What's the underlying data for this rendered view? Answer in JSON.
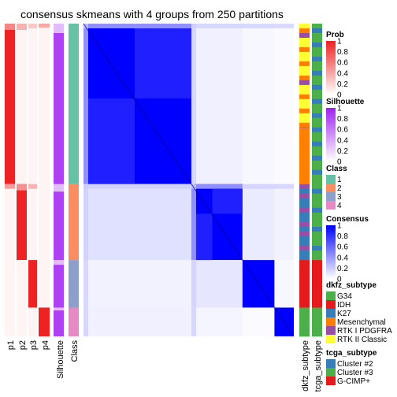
{
  "chart_data": {
    "type": "heatmap",
    "title": "consensus skmeans with 4 groups from 250 partitions",
    "colors": {
      "class": {
        "1": "#66C2A5",
        "2": "#FC8D62",
        "3": "#8DA0CB",
        "4": "#E78AC3"
      },
      "prob_high": "#EE2222",
      "silhouette_high": "#A020F0",
      "consensus_high": "#0000FF",
      "dkfz": {
        "G34": "#4DAF4A",
        "IDH": "#E41A1C",
        "K27": "#377EB8",
        "Mesenchymal": "#FF7F00",
        "RTK I PDGFRA": "#984EA3",
        "RTK II Classic": "#FFFF33"
      },
      "tcga": {
        "Cluster #2": "#377EB8",
        "Cluster #3": "#4DAF4A",
        "G-CIMP+": "#E41A1C"
      }
    },
    "groups": [
      {
        "class": "1",
        "size_fraction": 0.513
      },
      {
        "class": "2",
        "size_fraction": 0.243
      },
      {
        "class": "3",
        "size_fraction": 0.152
      },
      {
        "class": "4",
        "size_fraction": 0.092
      }
    ],
    "row_annotations": [
      "p1",
      "p2",
      "p3",
      "p4",
      "Silhouette",
      "Class"
    ],
    "column_annotations": [
      "dkfz_subtype",
      "tcga_subtype"
    ],
    "legends": [
      {
        "title": "Prob",
        "type": "continuous",
        "ticks": [
          "1",
          "0.8",
          "0.6",
          "0.4",
          "0.2",
          "0"
        ]
      },
      {
        "title": "Silhouette",
        "type": "continuous",
        "ticks": [
          "1",
          "0.8",
          "0.6",
          "0.4",
          "0.2",
          "0"
        ]
      },
      {
        "title": "Class",
        "type": "discrete",
        "items": [
          "1",
          "2",
          "3",
          "4"
        ]
      },
      {
        "title": "Consensus",
        "type": "continuous",
        "ticks": [
          "1",
          "0.8",
          "0.6",
          "0.4",
          "0.2",
          "0"
        ]
      },
      {
        "title": "dkfz_subtype",
        "type": "discrete",
        "items": [
          "G34",
          "IDH",
          "K27",
          "Mesenchymal",
          "RTK I PDGFRA",
          "RTK II Classic"
        ]
      },
      {
        "title": "tcga_subtype",
        "type": "discrete",
        "items": [
          "Cluster #2",
          "Cluster #3",
          "G-CIMP+"
        ]
      }
    ]
  }
}
